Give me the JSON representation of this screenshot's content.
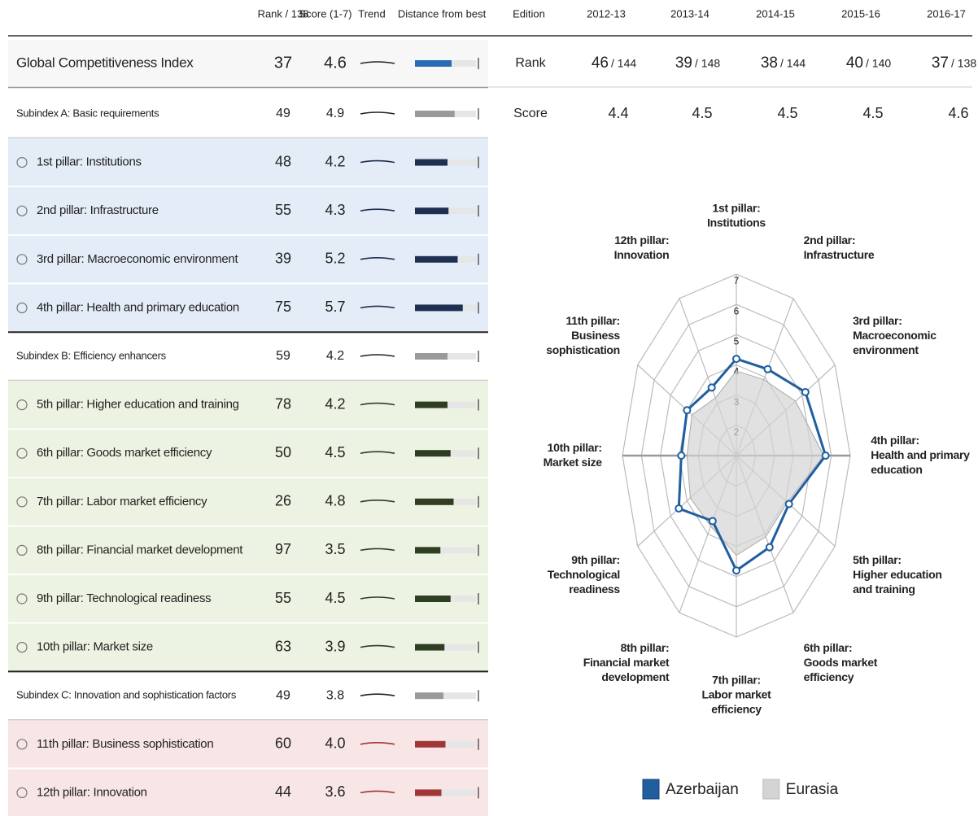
{
  "table": {
    "columns": [
      "Rank / 138",
      "Score (1-7)",
      "Trend",
      "Distance from best"
    ],
    "gci": {
      "label": "Global Competitiveness Index",
      "rank": 37,
      "score": 4.6,
      "color": "#2a6cb3"
    },
    "groups": [
      {
        "label": "Subindex A: Basic requirements",
        "rank": 49,
        "score": 4.9,
        "color": "#9a9a9a",
        "row_color": "#e4edf7",
        "bar_color": "#1f2f52",
        "pillars": [
          {
            "label": "1st pillar: Institutions",
            "rank": 48,
            "score": 4.2
          },
          {
            "label": "2nd pillar: Infrastructure",
            "rank": 55,
            "score": 4.3
          },
          {
            "label": "3rd pillar: Macroeconomic environment",
            "rank": 39,
            "score": 5.2
          },
          {
            "label": "4th pillar: Health and primary education",
            "rank": 75,
            "score": 5.7
          }
        ]
      },
      {
        "label": "Subindex B: Efficiency enhancers",
        "rank": 59,
        "score": 4.2,
        "color": "#9a9a9a",
        "row_color": "#edf3e2",
        "bar_color": "#2f3d22",
        "pillars": [
          {
            "label": "5th pillar: Higher education and training",
            "rank": 78,
            "score": 4.2
          },
          {
            "label": "6th pillar: Goods market efficiency",
            "rank": 50,
            "score": 4.5
          },
          {
            "label": "7th pillar: Labor market efficiency",
            "rank": 26,
            "score": 4.8
          },
          {
            "label": "8th pillar: Financial market development",
            "rank": 97,
            "score": 3.5
          },
          {
            "label": "9th pillar: Technological readiness",
            "rank": 55,
            "score": 4.5
          },
          {
            "label": "10th pillar: Market size",
            "rank": 63,
            "score": 3.9
          }
        ]
      },
      {
        "label": "Subindex C: Innovation and sophistication factors",
        "rank": 49,
        "score": 3.8,
        "color": "#9a9a9a",
        "row_color": "#f8e6e6",
        "bar_color": "#a03636",
        "pillars": [
          {
            "label": "11th pillar: Business sophistication",
            "rank": 60,
            "score": "4.0"
          },
          {
            "label": "12th pillar: Innovation",
            "rank": 44,
            "score": 3.6
          }
        ]
      }
    ]
  },
  "editions": {
    "label": "Edition",
    "years": [
      "2012-13",
      "2013-14",
      "2014-15",
      "2015-16",
      "2016-17"
    ],
    "rank_label": "Rank",
    "ranks": [
      46,
      39,
      38,
      40,
      37
    ],
    "of": [
      "/ 144",
      "/ 148",
      "/ 144",
      "/ 140",
      "/ 138"
    ],
    "rank_color": "#2a6cb3",
    "score_label": "Score",
    "scores": [
      4.4,
      4.5,
      4.5,
      4.5,
      4.6
    ]
  },
  "chart_data": {
    "type": "radar",
    "categories": [
      [
        "1st pillar:",
        "Institutions"
      ],
      [
        "2nd pillar:",
        "Infrastructure"
      ],
      [
        "3rd pillar:",
        "Macroeconomic",
        "environment"
      ],
      [
        "4th pillar:",
        "Health and primary",
        "education"
      ],
      [
        "5th pillar:",
        "Higher education",
        "and training"
      ],
      [
        "6th pillar:",
        "Goods market",
        "efficiency"
      ],
      [
        "7th pillar:",
        "Labor market",
        "efficiency"
      ],
      [
        "8th pillar:",
        "Financial market",
        "development"
      ],
      [
        "9th pillar:",
        "Technological",
        "readiness"
      ],
      [
        "10th pillar:",
        "Market size"
      ],
      [
        "11th pillar:",
        "Business",
        "sophistication"
      ],
      [
        "12th pillar:",
        "Innovation"
      ]
    ],
    "label_colors": [
      "#1f2f52",
      "#1f2f52",
      "#3a5379",
      "#4a5f86",
      "#222",
      "#2f3d22",
      "#2f3d22",
      "#3a4530",
      "#6f7a5e",
      "#7d8770",
      "#a33a3a",
      "#b04545"
    ],
    "series": [
      {
        "name": "Azerbaijan",
        "color": "#1f5fa0",
        "values": [
          4.2,
          4.3,
          5.2,
          5.7,
          4.2,
          4.5,
          4.8,
          3.5,
          4.5,
          3.9,
          4.0,
          3.6
        ]
      },
      {
        "name": "Eurasia",
        "color": "#d4d4d4",
        "values": [
          3.8,
          3.9,
          4.6,
          5.6,
          4.1,
          4.1,
          4.3,
          3.7,
          3.8,
          3.6,
          3.7,
          3.2
        ]
      }
    ],
    "ylim": [
      1,
      7
    ],
    "yticks": [
      2,
      3,
      4,
      5,
      6,
      7
    ]
  }
}
